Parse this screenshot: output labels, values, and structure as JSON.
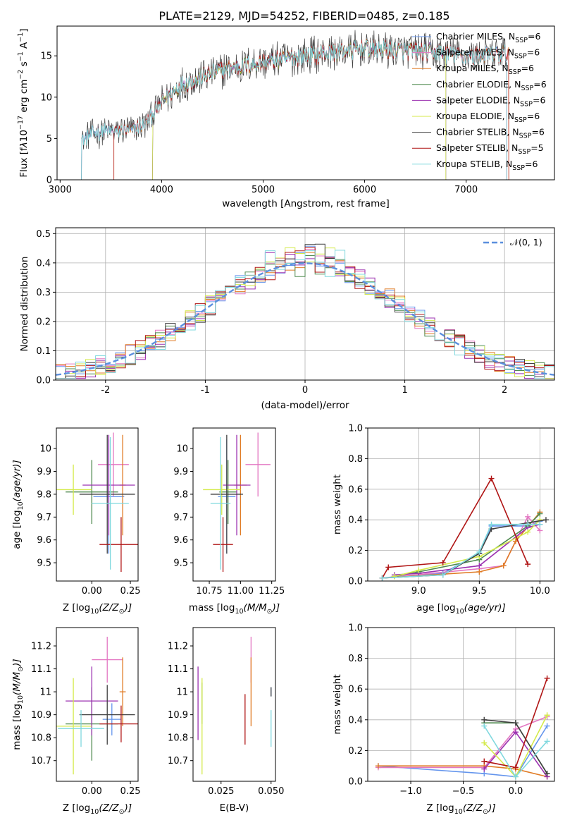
{
  "figure_title": "PLATE=2129, MJD=54252, FIBERID=0485, z=0.185",
  "colors": {
    "Chabrier MILES": "#6495ed",
    "Salpeter MILES": "#e377c2",
    "Kroupa MILES": "#e07b25",
    "Chabrier ELODIE": "#4f8a4f",
    "Salpeter ELODIE": "#9b30b0",
    "Kroupa ELODIE": "#d4ea4a",
    "Chabrier STELIB": "#404040",
    "Salpeter STELIB": "#b01515",
    "Kroupa STELIB": "#7fd8de"
  },
  "chart_data": [
    {
      "id": "spectrum",
      "type": "line",
      "xlabel": "wavelength [Angstrom, rest frame]",
      "ylabel_parts": [
        "Flux [f",
        "λ",
        "10",
        "−17",
        " erg cm",
        "−2",
        " s",
        "−1",
        " A",
        "−1",
        "]"
      ],
      "xlim": [
        2970,
        7870
      ],
      "ylim": [
        0,
        18.6
      ],
      "xticks": [
        3000,
        4000,
        5000,
        6000,
        7000
      ],
      "yticks": [
        0,
        5,
        10,
        15
      ],
      "grid": false,
      "legend_position": "top-right",
      "legend": [
        {
          "name": "Chabrier MILES",
          "label": "Chabrier MILES, N",
          "sub": "SSP",
          "suffix": "=6"
        },
        {
          "name": "Salpeter MILES",
          "label": "Salpeter MILES, N",
          "sub": "SSP",
          "suffix": "=6"
        },
        {
          "name": "Kroupa MILES",
          "label": "Kroupa MILES, N",
          "sub": "SSP",
          "suffix": "=6"
        },
        {
          "name": "Chabrier ELODIE",
          "label": "Chabrier ELODIE, N",
          "sub": "SSP",
          "suffix": "=6"
        },
        {
          "name": "Salpeter ELODIE",
          "label": "Salpeter ELODIE, N",
          "sub": "SSP",
          "suffix": "=6"
        },
        {
          "name": "Kroupa ELODIE",
          "label": "Kroupa ELODIE, N",
          "sub": "SSP",
          "suffix": "=6"
        },
        {
          "name": "Chabrier STELIB",
          "label": "Chabrier STELIB, N",
          "sub": "SSP",
          "suffix": "=6"
        },
        {
          "name": "Salpeter STELIB",
          "label": "Salpeter STELIB, N",
          "sub": "SSP",
          "suffix": "=5"
        },
        {
          "name": "Kroupa STELIB",
          "label": "Kroupa STELIB, N",
          "sub": "SSP",
          "suffix": "=6"
        }
      ],
      "model_wavelength_ranges": {
        "Chabrier MILES": [
          3210,
          7400
        ],
        "Salpeter MILES": [
          3210,
          7400
        ],
        "Kroupa MILES": [
          3530,
          7420
        ],
        "Chabrier ELODIE": [
          3910,
          6800
        ],
        "Salpeter ELODIE": [
          3910,
          6800
        ],
        "Kroupa ELODIE": [
          3910,
          6800
        ],
        "Chabrier STELIB": [
          3210,
          7400
        ],
        "Salpeter STELIB": [
          3530,
          7420
        ],
        "Kroupa STELIB": [
          3210,
          7400
        ]
      },
      "continuum": {
        "x": [
          3210,
          3300,
          3500,
          3700,
          3850,
          3950,
          4050,
          4200,
          4400,
          4600,
          4800,
          5000,
          5200,
          5400,
          5600,
          5800,
          6000,
          6200,
          6400,
          6600,
          6800,
          7000,
          7200,
          7400,
          7700
        ],
        "y": [
          4.6,
          5.6,
          5.9,
          6.0,
          6.8,
          8.6,
          10.0,
          11.5,
          12.5,
          13.3,
          13.8,
          14.2,
          14.6,
          15.0,
          15.3,
          15.6,
          15.8,
          15.8,
          15.6,
          15.5,
          15.3,
          15.0,
          15.0,
          15.3,
          15.5
        ]
      },
      "noise_amplitude": 1.2
    },
    {
      "id": "residuals",
      "type": "histogram",
      "xlabel": "(data-model)/error",
      "ylabel": "Normed distribution",
      "xlim": [
        -2.5,
        2.5
      ],
      "ylim": [
        0,
        0.52
      ],
      "xticks": [
        -2,
        -1,
        0,
        1,
        2
      ],
      "yticks": [
        0.0,
        0.1,
        0.2,
        0.3,
        0.4,
        0.5
      ],
      "grid": true,
      "legend_position": "top-right",
      "legend_label": "𝒩(0, 1)",
      "bin_width": 0.1,
      "bin_range": [
        -2.5,
        2.5
      ],
      "reference": {
        "name": "normal",
        "mean": 0,
        "sigma": 1
      }
    },
    {
      "id": "age-vs-Z",
      "type": "errorbar",
      "xlabel_parts": [
        "Z [log",
        "10",
        "(Z/Z",
        "⊙",
        ")]"
      ],
      "ylabel_parts": [
        "age  [log",
        "10",
        "(age/yr)]"
      ],
      "xlim": [
        -0.23,
        0.3
      ],
      "ylim": [
        9.42,
        10.09
      ],
      "xticks": [
        0.0,
        0.25
      ],
      "xticklabels": [
        "0.00",
        "0.25"
      ],
      "yticks": [
        9.5,
        9.6,
        9.7,
        9.8,
        9.9,
        10.0
      ],
      "grid": false,
      "points": [
        {
          "name": "Chabrier MILES",
          "x": 0.11,
          "xerr": 0.1,
          "y": 9.79,
          "yerr": 0.25
        },
        {
          "name": "Salpeter MILES",
          "x": 0.14,
          "xerr": 0.1,
          "y": 9.93,
          "yerr": 0.14
        },
        {
          "name": "Kroupa MILES",
          "x": 0.2,
          "xerr": 0.02,
          "y": 9.84,
          "yerr": 0.22
        },
        {
          "name": "Chabrier ELODIE",
          "x": 0.0,
          "xerr": 0.17,
          "y": 9.81,
          "yerr": 0.14
        },
        {
          "name": "Salpeter ELODIE",
          "x": 0.11,
          "xerr": 0.17,
          "y": 9.84,
          "yerr": 0.22
        },
        {
          "name": "Kroupa ELODIE",
          "x": -0.12,
          "xerr": 0.12,
          "y": 9.82,
          "yerr": 0.11
        },
        {
          "name": "Chabrier STELIB",
          "x": 0.1,
          "xerr": 0.18,
          "y": 9.8,
          "yerr": 0.26
        },
        {
          "name": "Salpeter STELIB",
          "x": 0.19,
          "xerr": 0.14,
          "y": 9.58,
          "yerr": 0.12
        },
        {
          "name": "Kroupa STELIB",
          "x": 0.12,
          "xerr": 0.12,
          "y": 9.76,
          "yerr": 0.29
        }
      ]
    },
    {
      "id": "age-vs-mass",
      "type": "errorbar",
      "xlabel_parts": [
        "mass [log",
        "10",
        "(M/M",
        "⊙",
        ")]"
      ],
      "ylabel_parts": [],
      "xlim": [
        10.62,
        11.28
      ],
      "ylim": [
        9.42,
        10.09
      ],
      "xticks": [
        10.75,
        11.0,
        11.25
      ],
      "xticklabels": [
        "10.75",
        "11.00",
        "11.25"
      ],
      "yticks": [
        9.5,
        9.6,
        9.7,
        9.8,
        9.9,
        10.0
      ],
      "grid": false,
      "points": [
        {
          "name": "Chabrier MILES",
          "x": 10.89,
          "xerr": 0.07,
          "y": 9.79,
          "yerr": 0.25
        },
        {
          "name": "Salpeter MILES",
          "x": 11.14,
          "xerr": 0.1,
          "y": 9.93,
          "yerr": 0.14
        },
        {
          "name": "Kroupa MILES",
          "x": 11.0,
          "xerr": 0.05,
          "y": 9.84,
          "yerr": 0.22
        },
        {
          "name": "Chabrier ELODIE",
          "x": 10.9,
          "xerr": 0.07,
          "y": 9.81,
          "yerr": 0.14
        },
        {
          "name": "Salpeter ELODIE",
          "x": 10.97,
          "xerr": 0.11,
          "y": 9.84,
          "yerr": 0.22
        },
        {
          "name": "Kroupa ELODIE",
          "x": 10.85,
          "xerr": 0.15,
          "y": 9.82,
          "yerr": 0.11
        },
        {
          "name": "Chabrier STELIB",
          "x": 10.89,
          "xerr": 0.13,
          "y": 9.8,
          "yerr": 0.26
        },
        {
          "name": "Salpeter STELIB",
          "x": 10.86,
          "xerr": 0.08,
          "y": 9.58,
          "yerr": 0.12
        },
        {
          "name": "Kroupa STELIB",
          "x": 10.84,
          "xerr": 0.08,
          "y": 9.76,
          "yerr": 0.29
        }
      ]
    },
    {
      "id": "mass-weight-vs-age",
      "type": "line",
      "xlabel_parts": [
        "age  [log",
        "10",
        "(age/yr)]"
      ],
      "ylabel": "mass weight",
      "xlim": [
        8.58,
        10.12
      ],
      "ylim": [
        0,
        1.0
      ],
      "xticks": [
        9.0,
        9.5,
        10.0
      ],
      "xticklabels": [
        "9.0",
        "9.5",
        "10.0"
      ],
      "yticks": [
        0.0,
        0.2,
        0.4,
        0.6,
        0.8,
        1.0
      ],
      "grid": true,
      "series": [
        {
          "name": "Chabrier MILES",
          "x": [
            8.7,
            9.2,
            9.5,
            9.6,
            9.9,
            10.0
          ],
          "y": [
            0.02,
            0.05,
            0.18,
            0.36,
            0.36,
            0.39
          ]
        },
        {
          "name": "Salpeter MILES",
          "x": [
            8.7,
            9.5,
            9.7,
            9.9,
            10.0
          ],
          "y": [
            0.02,
            0.08,
            0.1,
            0.42,
            0.33
          ]
        },
        {
          "name": "Kroupa MILES",
          "x": [
            8.7,
            9.5,
            9.7,
            9.8,
            10.0
          ],
          "y": [
            0.02,
            0.06,
            0.1,
            0.26,
            0.45
          ]
        },
        {
          "name": "Chabrier ELODIE",
          "x": [
            8.8,
            9.0,
            9.5,
            9.9,
            10.0
          ],
          "y": [
            0.03,
            0.06,
            0.14,
            0.36,
            0.44
          ]
        },
        {
          "name": "Salpeter ELODIE",
          "x": [
            8.8,
            9.0,
            9.5,
            9.9,
            10.0
          ],
          "y": [
            0.04,
            0.05,
            0.1,
            0.35,
            0.37
          ]
        },
        {
          "name": "Kroupa ELODIE",
          "x": [
            8.8,
            9.0,
            9.5,
            9.9,
            10.0
          ],
          "y": [
            0.03,
            0.07,
            0.16,
            0.32,
            0.4
          ]
        },
        {
          "name": "Chabrier STELIB",
          "x": [
            8.7,
            9.2,
            9.5,
            9.6,
            9.9,
            10.05
          ],
          "y": [
            0.02,
            0.04,
            0.18,
            0.34,
            0.38,
            0.4
          ]
        },
        {
          "name": "Salpeter STELIB",
          "x": [
            8.7,
            8.75,
            9.2,
            9.6,
            9.9
          ],
          "y": [
            0.02,
            0.09,
            0.12,
            0.67,
            0.11
          ]
        },
        {
          "name": "Kroupa STELIB",
          "x": [
            8.7,
            9.2,
            9.5,
            9.6,
            9.9,
            10.0
          ],
          "y": [
            0.02,
            0.04,
            0.19,
            0.37,
            0.37,
            0.37
          ]
        }
      ]
    },
    {
      "id": "mass-vs-Z",
      "type": "errorbar",
      "xlabel_parts": [
        "Z [log",
        "10",
        "(Z/Z",
        "⊙",
        ")]"
      ],
      "ylabel_parts": [
        "mass [log",
        "10",
        "(M/M",
        "⊙",
        ")]"
      ],
      "xlim": [
        -0.23,
        0.3
      ],
      "ylim": [
        10.61,
        11.28
      ],
      "xticks": [
        0.0,
        0.25
      ],
      "xticklabels": [
        "0.00",
        "0.25"
      ],
      "yticks": [
        10.7,
        10.8,
        10.9,
        11.0,
        11.1,
        11.2
      ],
      "grid": false,
      "points": [
        {
          "name": "Chabrier MILES",
          "x": 0.13,
          "xerr": 0.06,
          "y": 10.88,
          "yerr": 0.07
        },
        {
          "name": "Salpeter MILES",
          "x": 0.1,
          "xerr": 0.1,
          "y": 11.14,
          "yerr": 0.1
        },
        {
          "name": "Kroupa MILES",
          "x": 0.2,
          "xerr": 0.02,
          "y": 11.0,
          "yerr": 0.15
        },
        {
          "name": "Chabrier ELODIE",
          "x": 0.0,
          "xerr": 0.17,
          "y": 10.86,
          "yerr": 0.16
        },
        {
          "name": "Salpeter ELODIE",
          "x": 0.0,
          "xerr": 0.17,
          "y": 10.96,
          "yerr": 0.15
        },
        {
          "name": "Kroupa ELODIE",
          "x": -0.12,
          "xerr": 0.12,
          "y": 10.85,
          "yerr": 0.21
        },
        {
          "name": "Chabrier STELIB",
          "x": 0.1,
          "xerr": 0.18,
          "y": 10.9,
          "yerr": 0.13
        },
        {
          "name": "Salpeter STELIB",
          "x": 0.19,
          "xerr": 0.14,
          "y": 10.86,
          "yerr": 0.08
        },
        {
          "name": "Kroupa STELIB",
          "x": -0.07,
          "xerr": 0.15,
          "y": 10.84,
          "yerr": 0.08
        }
      ]
    },
    {
      "id": "mass-vs-EBV",
      "type": "errorbar",
      "xlabel": "E(B-V)",
      "ylabel_parts": [],
      "xlim": [
        0.011,
        0.0522
      ],
      "ylim": [
        10.61,
        11.28
      ],
      "xticks": [
        0.025,
        0.05
      ],
      "xticklabels": [
        "0.025",
        "0.050"
      ],
      "yticks": [
        10.7,
        10.8,
        10.9,
        11.0,
        11.1,
        11.2
      ],
      "grid": false,
      "points": [
        {
          "name": "Chabrier MILES",
          "x": 0.05,
          "xerr": 0,
          "y": 11.0,
          "yerr": 0.02
        },
        {
          "name": "Salpeter MILES",
          "x": 0.04,
          "xerr": 0,
          "y": 11.14,
          "yerr": 0.1
        },
        {
          "name": "Kroupa MILES",
          "x": 0.04,
          "xerr": 0,
          "y": 11.0,
          "yerr": 0.15
        },
        {
          "name": "Chabrier ELODIE",
          "x": 0.0155,
          "xerr": 0,
          "y": 10.95,
          "yerr": 0.09
        },
        {
          "name": "Salpeter ELODIE",
          "x": 0.0135,
          "xerr": 0,
          "y": 10.95,
          "yerr": 0.16
        },
        {
          "name": "Kroupa ELODIE",
          "x": 0.0155,
          "xerr": 0,
          "y": 10.85,
          "yerr": 0.21
        },
        {
          "name": "Chabrier STELIB",
          "x": 0.05,
          "xerr": 0,
          "y": 11.0,
          "yerr": 0.02
        },
        {
          "name": "Salpeter STELIB",
          "x": 0.037,
          "xerr": 0,
          "y": 10.88,
          "yerr": 0.11
        },
        {
          "name": "Kroupa STELIB",
          "x": 0.05,
          "xerr": 0,
          "y": 10.84,
          "yerr": 0.08
        }
      ]
    },
    {
      "id": "mass-weight-vs-Z",
      "type": "line",
      "xlabel_parts": [
        "Z [log",
        "10",
        "(Z/Z",
        "⊙",
        ")]"
      ],
      "ylabel": "mass weight",
      "xlim": [
        -1.41,
        0.37
      ],
      "ylim": [
        0,
        1.0
      ],
      "xticks": [
        -1.0,
        -0.5,
        0.0
      ],
      "xticklabels": [
        "−1.0",
        "−0.5",
        "0.0"
      ],
      "yticks": [
        0.0,
        0.2,
        0.4,
        0.6,
        0.8,
        1.0
      ],
      "grid": true,
      "series": [
        {
          "name": "Chabrier MILES",
          "x": [
            -1.31,
            -0.3,
            0.0,
            0.3
          ],
          "y": [
            0.1,
            0.05,
            0.03,
            0.36
          ]
        },
        {
          "name": "Salpeter MILES",
          "x": [
            -1.31,
            -0.3,
            0.0,
            0.3
          ],
          "y": [
            0.09,
            0.09,
            0.34,
            0.42
          ]
        },
        {
          "name": "Kroupa MILES",
          "x": [
            -1.31,
            -0.3,
            0.0,
            0.3
          ],
          "y": [
            0.1,
            0.1,
            0.08,
            0.03
          ]
        },
        {
          "name": "Chabrier ELODIE",
          "x": [
            -0.3,
            0.0,
            0.3
          ],
          "y": [
            0.38,
            0.38,
            0.05
          ]
        },
        {
          "name": "Salpeter ELODIE",
          "x": [
            -0.3,
            0.0,
            0.3
          ],
          "y": [
            0.08,
            0.32,
            0.03
          ]
        },
        {
          "name": "Kroupa ELODIE",
          "x": [
            -0.3,
            0.0,
            0.3
          ],
          "y": [
            0.25,
            0.03,
            0.43
          ]
        },
        {
          "name": "Chabrier STELIB",
          "x": [
            -0.3,
            0.0,
            0.3
          ],
          "y": [
            0.4,
            0.38,
            0.05
          ]
        },
        {
          "name": "Salpeter STELIB",
          "x": [
            -0.3,
            0.0,
            0.3
          ],
          "y": [
            0.13,
            0.09,
            0.67
          ]
        },
        {
          "name": "Kroupa STELIB",
          "x": [
            -0.3,
            0.0,
            0.3
          ],
          "y": [
            0.36,
            0.03,
            0.26
          ]
        }
      ]
    }
  ]
}
